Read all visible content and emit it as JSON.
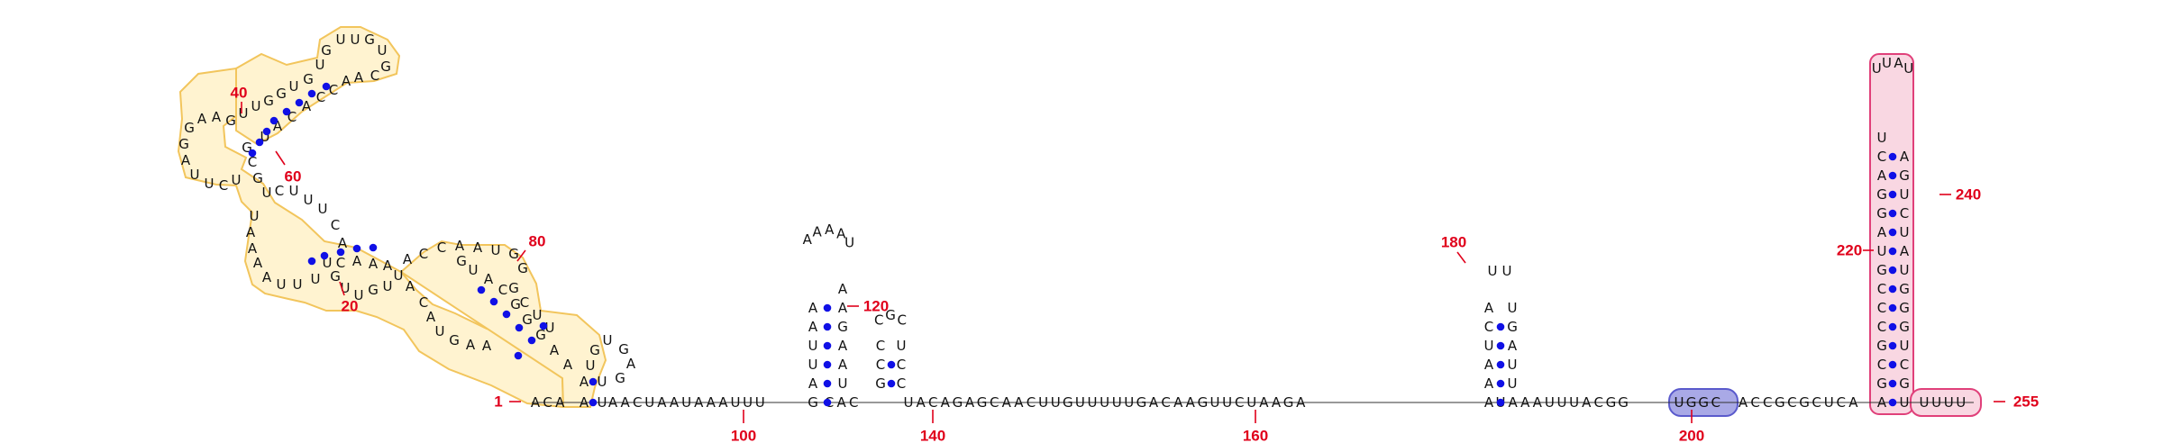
{
  "diagram": {
    "type": "rna-secondary-structure",
    "colors": {
      "nucleotide_text": "#111111",
      "pair_dot": "#1010e6",
      "number_label": "#e0001b",
      "region_yellow_fill": "#fff3d0",
      "region_yellow_stroke": "#f2c55c",
      "region_pink_fill": "#f9d7e2",
      "region_pink_stroke": "#e0407a",
      "region_blue_fill": "#a9a9e6",
      "region_blue_stroke": "#5a5acc"
    },
    "domain1": {
      "label_40": "40",
      "label_60": "60",
      "label_80": "80",
      "label_20": "20"
    },
    "baseline": {
      "start_label": "1",
      "end_label": "255",
      "tick_labels": [
        "100",
        "140",
        "160",
        "200"
      ],
      "seq_a": "ACA",
      "seq_b": "AACUAAUAAAUUU",
      "seq_c": "CAC",
      "seq_d": "UACAGAGCAACUUGUUUUUGACAAGUUCUAAGA",
      "seq_e": "UAAAUUUACGG",
      "seq_f": "UGGC",
      "seq_g": "ACCGCGCUCA",
      "seq_h": "UUUU"
    },
    "hp1": {
      "left": "GAUUAA",
      "right": "UAAGAA",
      "loop": "AAAAU",
      "label": "120"
    },
    "hp2": {
      "left": "GCC",
      "right": "CCU",
      "loop": "CGC"
    },
    "hp3": {
      "left": "AAAUCA",
      "right": "UUAGU",
      "loop": "UU",
      "label": "180"
    },
    "hp4": {
      "left": "AGCGCCCGUAGGACU",
      "right": "UGCUGGGUAUCUGA",
      "loop": "UUAU",
      "label_220": "220",
      "label_240": "240"
    }
  }
}
